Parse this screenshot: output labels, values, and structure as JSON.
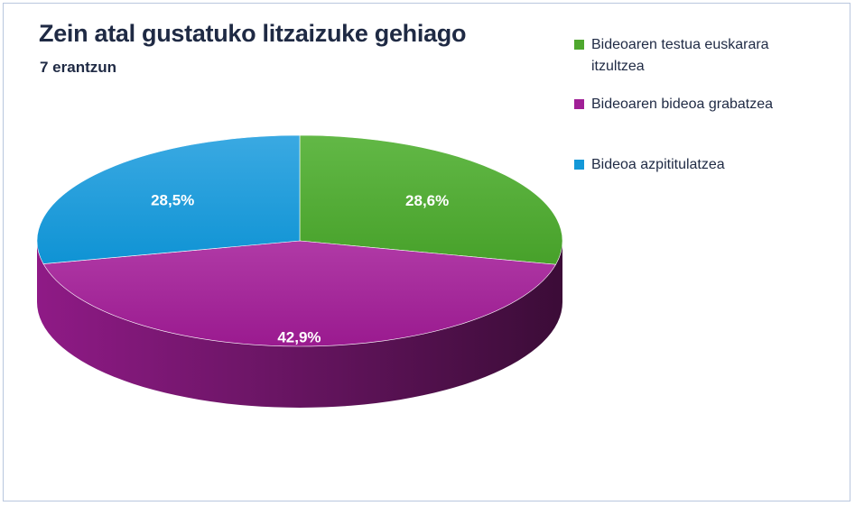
{
  "chart_data": {
    "type": "pie",
    "title": "Zein atal gustatuko litzaizuke gehiago",
    "subtitle": "7 erantzun",
    "legend_position": "top-right",
    "slices": [
      {
        "label": "Bideoaren testua euskarara itzultzea",
        "value": 28.6,
        "display": "28,6%",
        "color": "#4ea72e"
      },
      {
        "label": "Bideoaren bideoa grabatzea",
        "value": 42.9,
        "display": "42,9%",
        "color": "#a01f96"
      },
      {
        "label": "Bideoa azpititulatzea",
        "value": 28.5,
        "display": "28,5%",
        "color": "#1398d8"
      }
    ]
  }
}
